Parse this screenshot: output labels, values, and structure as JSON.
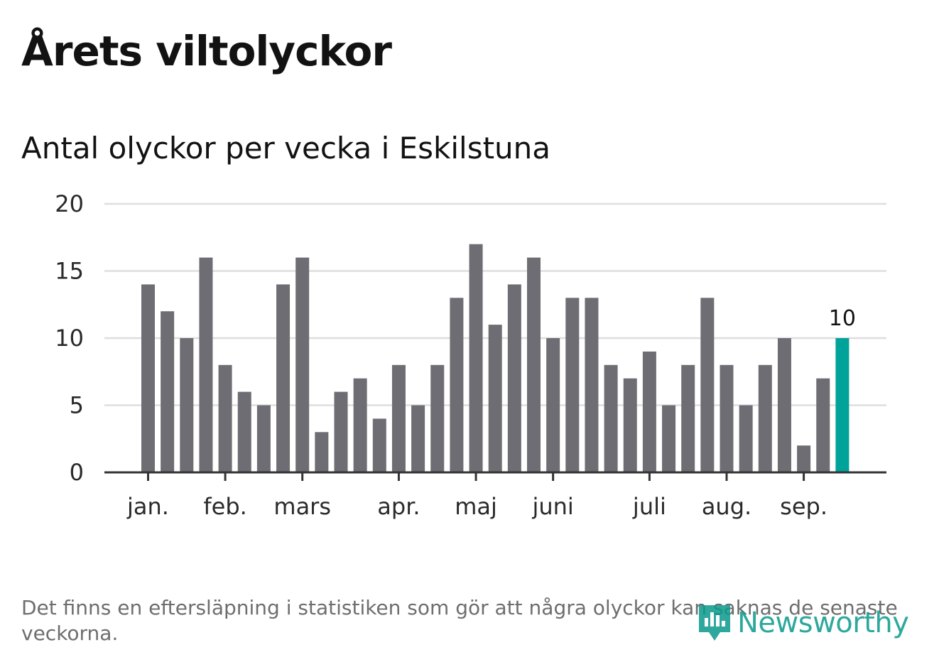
{
  "title": "Årets viltolyckor",
  "subtitle": "Antal olyckor per vecka i Eskilstuna",
  "footnote": "Det finns en eftersläpning i statistiken som gör att några olyckor kan saknas de senaste veckorna.",
  "logo_text": "Newsworthy",
  "colors": {
    "bar": "#6e6d73",
    "highlight": "#00a39a",
    "grid": "#dedede",
    "axis": "#333333"
  },
  "chart_data": {
    "type": "bar",
    "ylim": [
      0,
      20
    ],
    "yticks": [
      0,
      5,
      10,
      15,
      20
    ],
    "grid": true,
    "values": [
      14,
      12,
      10,
      16,
      8,
      6,
      5,
      14,
      16,
      3,
      6,
      7,
      4,
      8,
      5,
      8,
      13,
      17,
      11,
      14,
      16,
      10,
      13,
      13,
      8,
      7,
      9,
      5,
      8,
      13,
      8,
      5,
      8,
      10,
      2,
      7,
      10
    ],
    "highlight_index": 36,
    "data_labels": [
      {
        "index": 36,
        "text": "10"
      }
    ],
    "month_labels": [
      {
        "label": "jan.",
        "index": 0
      },
      {
        "label": "feb.",
        "index": 4
      },
      {
        "label": "mars",
        "index": 8
      },
      {
        "label": "apr.",
        "index": 13
      },
      {
        "label": "maj",
        "index": 17
      },
      {
        "label": "juni",
        "index": 21
      },
      {
        "label": "juli",
        "index": 26
      },
      {
        "label": "aug.",
        "index": 30
      },
      {
        "label": "sep.",
        "index": 34
      }
    ]
  }
}
